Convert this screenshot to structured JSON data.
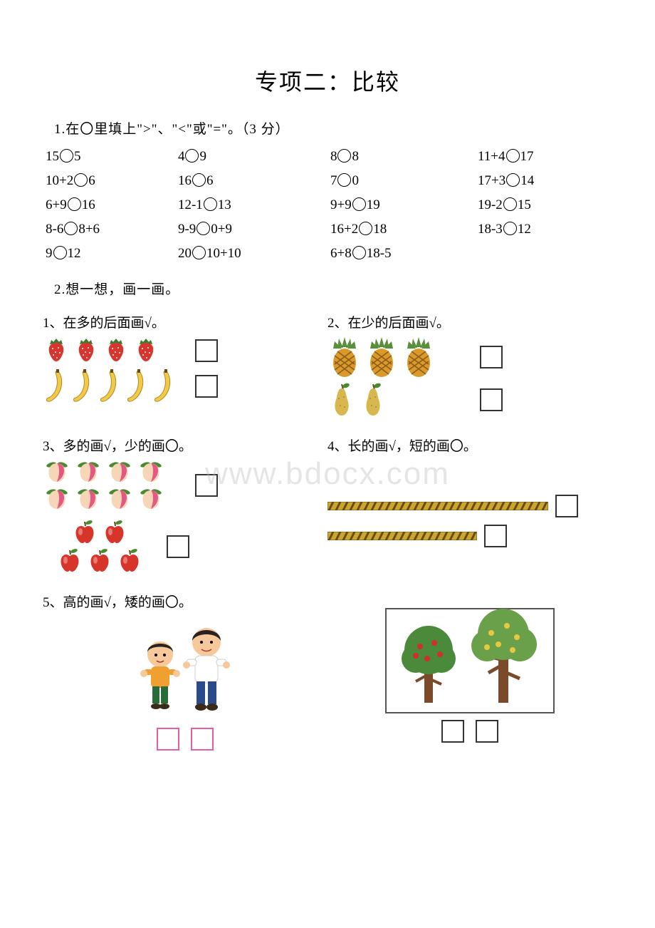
{
  "title": "专项二：比较",
  "q1": {
    "instruction": "1.在〇里填上\">\"、\"<\"或\"=\"。（3 分）",
    "rows": [
      [
        {
          "l": "15",
          "r": "5"
        },
        {
          "l": "4",
          "r": "9"
        },
        {
          "l": "8",
          "r": "8"
        },
        {
          "l": "11+4",
          "r": "17"
        }
      ],
      [
        {
          "l": "10+2",
          "r": "6"
        },
        {
          "l": "16",
          "r": "6"
        },
        {
          "l": "7",
          "r": "0"
        },
        {
          "l": "17+3",
          "r": "14"
        }
      ],
      [
        {
          "l": "6+9",
          "r": "16"
        },
        {
          "l": "12-1",
          "r": "13"
        },
        {
          "l": "9+9",
          "r": "19"
        },
        {
          "l": "19-2",
          "r": "15"
        }
      ],
      [
        {
          "l": "8-6",
          "r": "8+6"
        },
        {
          "l": "9-9",
          "r": "0+9"
        },
        {
          "l": "16+2",
          "r": "18"
        },
        {
          "l": "18-3",
          "r": "12"
        }
      ],
      [
        {
          "l": "9",
          "r": "12"
        },
        {
          "l": "20",
          "r": "10+10"
        },
        {
          "l": "6+8",
          "r": "18-5"
        },
        null
      ]
    ]
  },
  "q2": {
    "instruction": "2.想一想，画一画。",
    "subs": {
      "s1": "1、在多的后面画√。",
      "s2": "2、在少的后面画√。",
      "s3": "3、多的画√，少的画〇。",
      "s4": "4、长的画√，短的画〇。",
      "s5": "5、高的画√，矮的画〇。"
    },
    "counts": {
      "strawberries": 4,
      "bananas": 5,
      "pineapples": 3,
      "pears": 2,
      "peaches_row1": 4,
      "peaches_row2": 4,
      "apples_row1": 2,
      "apples_row2": 3
    },
    "colors": {
      "strawberry": "#d8352e",
      "strawberry_leaf": "#3a7d2c",
      "banana": "#f3c94a",
      "pineapple_body": "#d99a2b",
      "pineapple_leaf": "#5a8f3a",
      "pear": "#d8b84e",
      "peach_body": "#f7d6b8",
      "peach_tip": "#e0427a",
      "peach_leaf": "#4a8a2e",
      "apple": "#d8352a",
      "apple_leaf": "#4a8a2e",
      "rope": "#c9a62e",
      "rope_dark": "#6b4a1a",
      "box_border": "#333333",
      "box_pink": "#e95ca0",
      "boy1_shirt": "#f0a030",
      "boy1_pants": "#2a6b3a",
      "boy2_shirt": "#ffffff",
      "boy2_pants": "#2a4a8a",
      "skin": "#f7c89a",
      "hair": "#2a2420",
      "tree_trunk": "#7a4a2a",
      "tree_leaf1": "#4a8a3a",
      "tree_leaf2": "#6aa04a",
      "fruit_red": "#d03028",
      "fruit_yellow": "#e8c840"
    },
    "ropes": {
      "long_width": 310,
      "short_width": 210,
      "height": 12
    }
  },
  "watermark": "www.bdocx.com"
}
